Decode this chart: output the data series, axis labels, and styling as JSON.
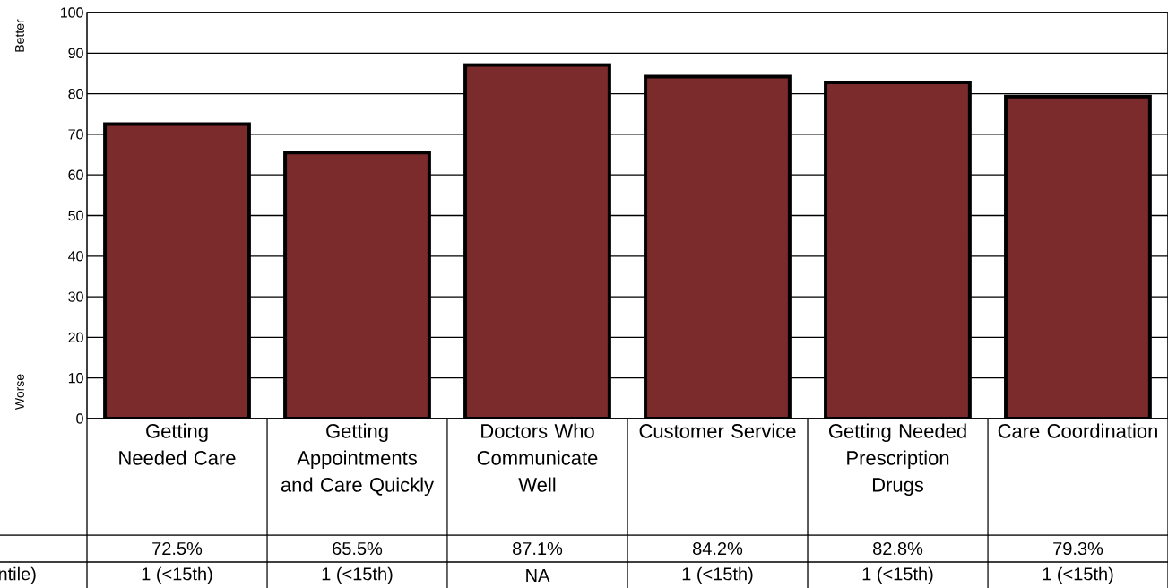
{
  "chart_data": {
    "type": "bar",
    "categories": [
      "Getting Needed Care",
      "Getting Appointments and Care Quickly",
      "Doctors Who Communicate Well",
      "Customer Service",
      "Getting Needed Prescription Drugs",
      "Care Coordination"
    ],
    "values": [
      72.5,
      65.5,
      87.1,
      84.2,
      82.8,
      79.3
    ],
    "value_labels": [
      "72.5%",
      "65.5%",
      "87.1%",
      "84.2%",
      "82.8%",
      "79.3%"
    ],
    "color": "#7b2b2b",
    "ylim": [
      0,
      100
    ],
    "yticks": [
      0,
      10,
      20,
      30,
      40,
      50,
      60,
      70,
      80,
      90,
      100
    ],
    "grid": "y",
    "annotations": [
      "Better",
      "Worse",
      "ntile)",
      "1  (<15th)",
      "1  (<15th)",
      "NA",
      "1  (<15th)",
      "1  (<15th)",
      "1  (<15th)"
    ]
  }
}
